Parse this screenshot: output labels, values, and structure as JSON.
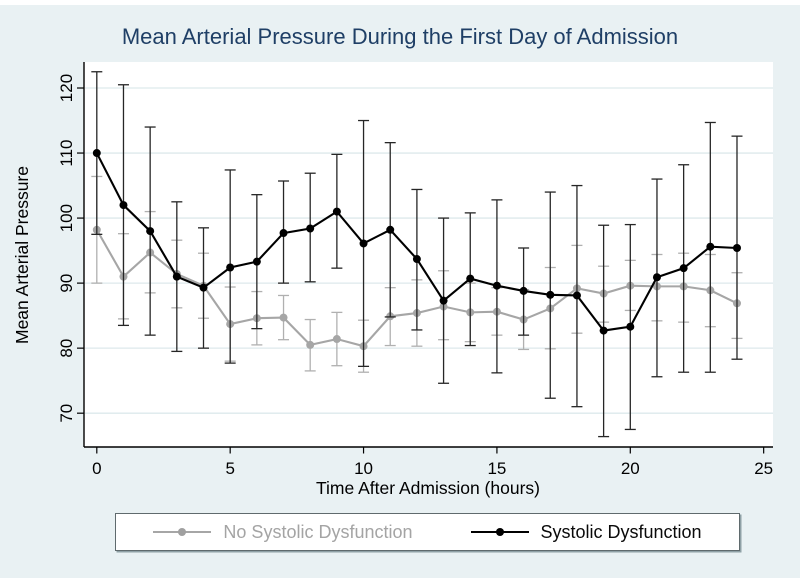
{
  "window": {
    "background": "#ffffff",
    "region_color": "#e9f1f3",
    "plot_background": "#ffffff",
    "grid_color": "#dde9ec",
    "axis_color": "#000000",
    "title_color": "#1f3f66"
  },
  "chart_data": {
    "type": "line",
    "title": "Mean Arterial Pressure During the First Day of Admission",
    "xlabel": "Time After Admission (hours)",
    "ylabel": "Mean Arterial Pressure",
    "x": [
      0,
      1,
      2,
      3,
      4,
      5,
      6,
      7,
      8,
      9,
      10,
      11,
      12,
      13,
      14,
      15,
      16,
      17,
      18,
      19,
      20,
      21,
      22,
      23,
      24
    ],
    "xticks": [
      0,
      5,
      10,
      15,
      20,
      25
    ],
    "yticks": [
      70,
      80,
      90,
      100,
      110,
      120
    ],
    "xlim": [
      -0.48,
      25.35
    ],
    "ylim": [
      64.8,
      124
    ],
    "grid": "horizontal",
    "legend_position": "bottom",
    "error_bars": true,
    "series": [
      {
        "name": "No Systolic Dysfunction",
        "color": "#a6a6a6",
        "bar_color": "#b0b0b0",
        "marker": "circle",
        "values": [
          98.2,
          91,
          94.7,
          91.4,
          89.6,
          83.7,
          84.6,
          84.7,
          80.5,
          81.4,
          80.3,
          84.9,
          85.4,
          86.4,
          85.5,
          85.6,
          84.4,
          86.1,
          89.2,
          88.4,
          89.6,
          89.5,
          89.5,
          88.9,
          86.9
        ],
        "ci_low": [
          90,
          84.5,
          88.5,
          86.2,
          84.6,
          78,
          80.5,
          81.3,
          76.5,
          77.3,
          76.3,
          80.4,
          80.3,
          81.3,
          81,
          82,
          79.8,
          79.9,
          82.3,
          84,
          85.8,
          84.2,
          84,
          83.3,
          81.5
        ],
        "ci_high": [
          106.4,
          97.6,
          101,
          96.6,
          94.6,
          89.4,
          88.7,
          88.1,
          84.4,
          85.5,
          84.3,
          89.3,
          90.5,
          91.9,
          90,
          89.3,
          89,
          92.4,
          95.8,
          92.6,
          93.5,
          94.4,
          94.6,
          94.4,
          91.6
        ]
      },
      {
        "name": "Systolic Dysfunction",
        "color": "#000000",
        "bar_color": "#262626",
        "marker": "circle",
        "values": [
          110,
          102,
          98,
          91,
          89.3,
          92.4,
          93.3,
          97.7,
          98.4,
          101,
          96.1,
          98.2,
          93.7,
          87.3,
          90.7,
          89.6,
          88.8,
          88.2,
          88.1,
          82.7,
          83.3,
          90.9,
          92.3,
          95.6,
          95.4
        ],
        "ci_low": [
          97.5,
          83.5,
          82,
          79.5,
          80,
          77.7,
          83,
          90,
          90.2,
          92.3,
          77.2,
          84.8,
          82.8,
          74.6,
          80.4,
          76.2,
          82,
          72.3,
          71,
          66.4,
          67.5,
          75.6,
          76.3,
          76.3,
          78.3
        ],
        "ci_high": [
          122.5,
          120.5,
          114,
          102.5,
          98.5,
          107.4,
          103.6,
          105.7,
          106.9,
          109.8,
          115,
          111.6,
          104.4,
          100,
          100.8,
          102.8,
          95.4,
          104,
          105,
          98.9,
          99,
          106,
          108.2,
          114.7,
          112.6
        ]
      }
    ],
    "legend": [
      {
        "label": "No Systolic Dysfunction"
      },
      {
        "label": "Systolic Dysfunction"
      }
    ]
  }
}
